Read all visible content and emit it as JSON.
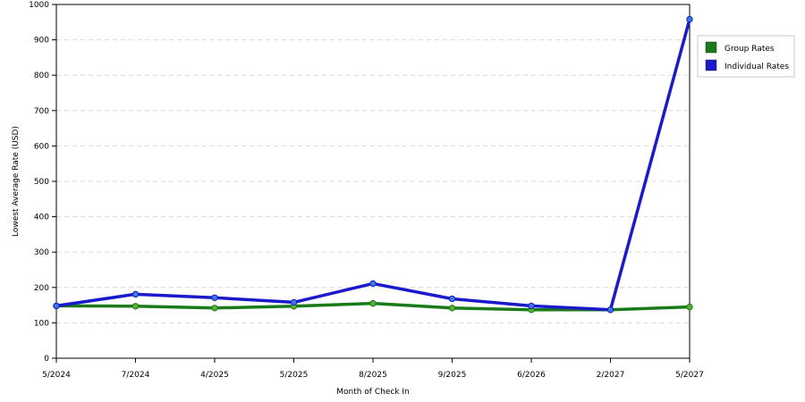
{
  "chart_data": {
    "type": "line",
    "categories": [
      "5/2024",
      "7/2024",
      "4/2025",
      "5/2025",
      "8/2025",
      "9/2025",
      "6/2026",
      "2/2027",
      "5/2027"
    ],
    "series": [
      {
        "name": "Group Rates",
        "color": "#1a7a1a",
        "marker_color": "#5cb030",
        "values": [
          148,
          147,
          142,
          147,
          155,
          142,
          137,
          137,
          145
        ]
      },
      {
        "name": "Individual Rates",
        "color": "#1a1acc",
        "marker_color": "#3a7ae0",
        "values": [
          148,
          181,
          171,
          158,
          211,
          168,
          148,
          137,
          958
        ]
      }
    ],
    "title": "",
    "xlabel": "Month of Check In",
    "ylabel": "Lowest Average Rate (USD)",
    "ylim": [
      0,
      1000
    ],
    "yticks": [
      "0",
      "100",
      "200",
      "300",
      "400",
      "500",
      "600",
      "700",
      "800",
      "900",
      "1000"
    ],
    "grid": true,
    "legend": "right"
  }
}
